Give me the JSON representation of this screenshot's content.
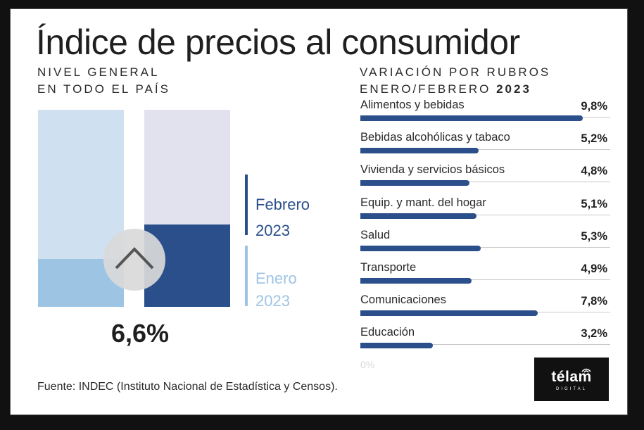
{
  "title": "Índice de precios al consumidor",
  "left_subtitle": [
    "NIVEL GENERAL",
    "EN TODO EL PAÍS"
  ],
  "right_subtitle": {
    "line1": "VARIACIÓN POR RUBROS",
    "line2_text": "ENERO/FEBRERO ",
    "line2_year": "2023"
  },
  "colors": {
    "dark_blue": "#2a4f8a",
    "light_blue": "#9ec4e4",
    "very_light_blue": "#cfe1f0",
    "lavender": "#e2e2ee",
    "grey_text": "#2a2a2a"
  },
  "icon": "chevron-up-icon",
  "chart_data": [
    {
      "type": "bar",
      "title": "NIVEL GENERAL EN TODO EL PAÍS",
      "value_label": "6,6%",
      "series": [
        {
          "name": "Enero 2023",
          "legend_line1": "Enero",
          "legend_line2": "2023"
        },
        {
          "name": "Febrero 2023",
          "legend_line1": "Febrero",
          "legend_line2": "2023",
          "value": 6.6
        }
      ]
    },
    {
      "type": "bar",
      "orientation": "horizontal",
      "title": "VARIACIÓN POR RUBROS ENERO/FEBRERO 2023",
      "categories": [
        "Alimentos y bebidas",
        "Bebidas alcohólicas y tabaco",
        "Vivienda y servicios básicos",
        "Equip. y mant. del hogar",
        "Salud",
        "Transporte",
        "Comunicaciones",
        "Educación"
      ],
      "values": [
        9.8,
        5.2,
        4.8,
        5.1,
        5.3,
        4.9,
        7.8,
        3.2
      ],
      "value_labels": [
        "9,8%",
        "5,2%",
        "4,8%",
        "5,1%",
        "5,3%",
        "4,9%",
        "7,8%",
        "3,2%"
      ],
      "axis_min_label": "0%",
      "xlim": [
        0,
        11
      ]
    }
  ],
  "source": "Fuente: INDEC (Instituto Nacional de Estadística y Censos).",
  "logo": {
    "main": "télam",
    "sub": "DIGITAL"
  }
}
